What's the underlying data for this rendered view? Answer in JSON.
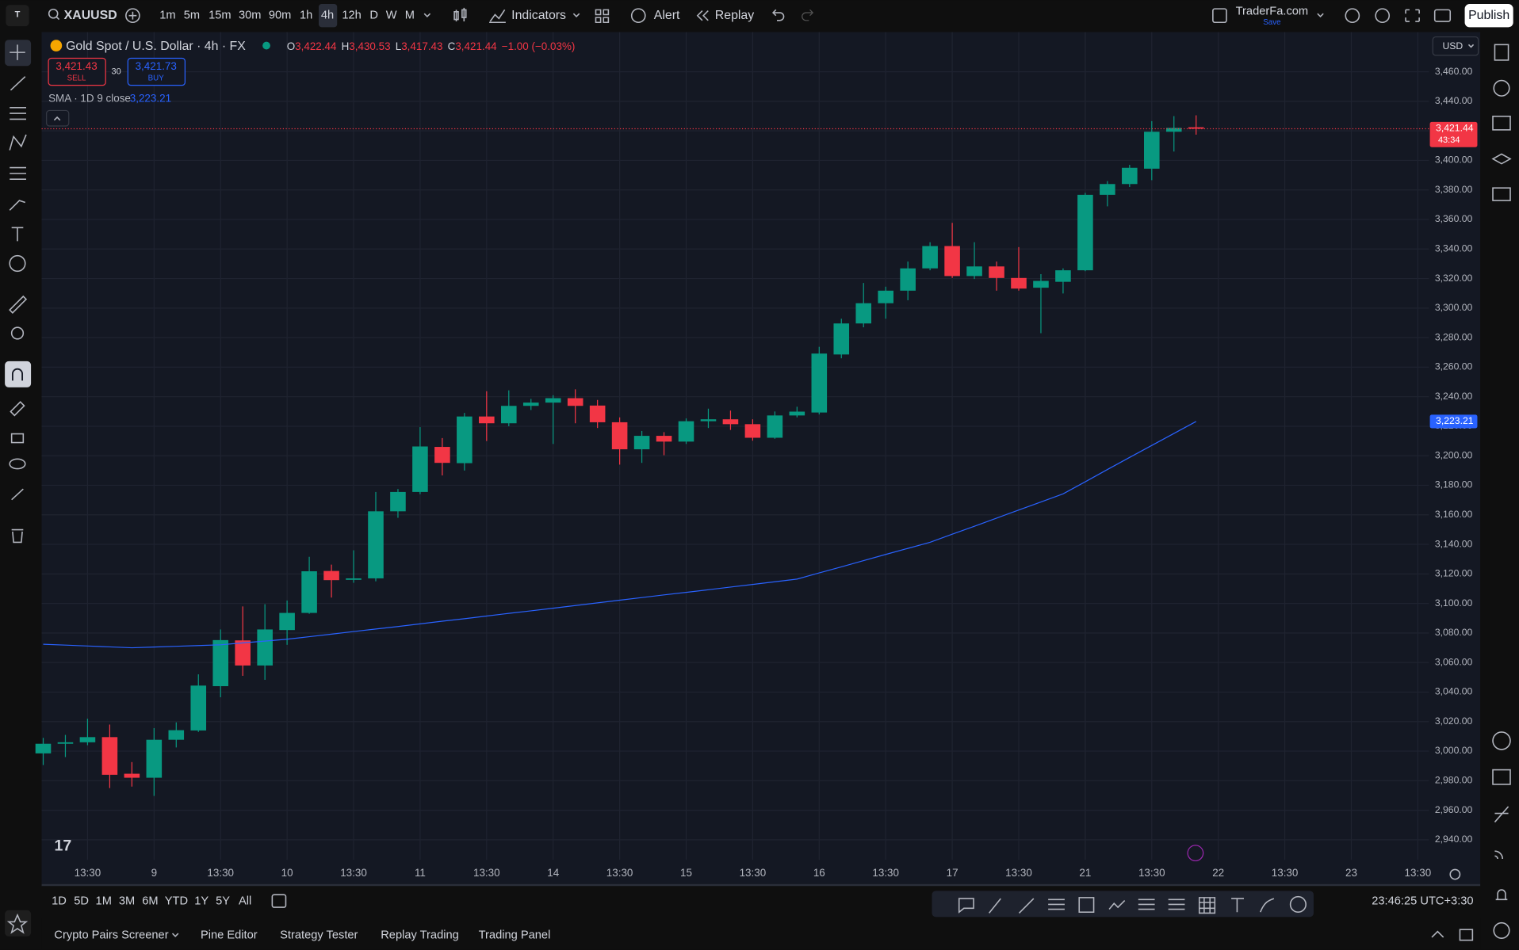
{
  "toolbar": {
    "symbol": "XAUUSD",
    "intervals": [
      "1m",
      "5m",
      "15m",
      "30m",
      "90m",
      "1h",
      "4h",
      "12h",
      "D",
      "W",
      "M"
    ],
    "indicators": "Indicators",
    "alert": "Alert",
    "replay": "Replay",
    "account": "TraderFa.com",
    "save": "Save",
    "publish": "Publish"
  },
  "legend": {
    "title": "Gold Spot / U.S. Dollar · 4h · FX",
    "ohlc_labels": [
      "O",
      "H",
      "L",
      "C"
    ],
    "ohlc_values": [
      "3,422.44",
      "3,430.53",
      "3,417.43",
      "3,421.44"
    ],
    "change": "−1.00 (−0.03%)",
    "sell_price": "3,421.43",
    "sell": "SELL",
    "spread": "30",
    "buy_price": "3,421.73",
    "buy": "BUY",
    "sma_value": "3,223.21"
  },
  "currency": "USD",
  "ranges": [
    "1D",
    "5D",
    "1M",
    "3M",
    "6M",
    "YTD",
    "1Y",
    "5Y",
    "All"
  ],
  "clock": "23:46:25 UTC+3:30",
  "tabs": [
    "Crypto Pairs Screener",
    "Pine Editor",
    "Strategy Tester",
    "Replay Trading",
    "Trading Panel"
  ],
  "chart_data": {
    "type": "candlestick",
    "grid": true,
    "up_color": "#089981",
    "down_color": "#f23645",
    "open": [
      2998.5,
      3005,
      3006,
      3009.5,
      2984.7,
      2982,
      3007.7,
      3014,
      3044,
      3075,
      3058,
      3082,
      3093.6,
      3122,
      3116,
      3117,
      3162.4,
      3175.5,
      3206,
      3195,
      3226.6,
      3222,
      3233.8,
      3236,
      3239,
      3234,
      3222.7,
      3204.4,
      3213.5,
      3209.6,
      3223.4,
      3224.7,
      3221.4,
      3212.2,
      3227.3,
      3229.3,
      3268.6,
      3289.6,
      3303.3,
      3311.8,
      3326.9,
      3342,
      3321.7,
      3328.2,
      3320.4,
      3313.8,
      3317.8,
      3325.6,
      3376.7,
      3384,
      3394.4,
      3419.4,
      3422.44
    ],
    "high": [
      3009,
      3011,
      3022,
      3018,
      2992.6,
      3015.6,
      3019.5,
      3052,
      3082.4,
      3098,
      3099.5,
      3102,
      3131.6,
      3126.3,
      3136,
      3175.5,
      3177.5,
      3219.4,
      3212,
      3229,
      3243.7,
      3244.3,
      3238.5,
      3241,
      3245,
      3237.8,
      3226,
      3216.8,
      3216,
      3225.3,
      3231.9,
      3230.6,
      3224.7,
      3230,
      3233.2,
      3273.8,
      3292.8,
      3317,
      3314.5,
      3331.5,
      3344.6,
      3357.7,
      3344.6,
      3331.5,
      3341.3,
      3323,
      3326.9,
      3378,
      3386,
      3397,
      3426.6,
      3430,
      3430.53
    ],
    "low": [
      2990.6,
      2996,
      3004,
      2975,
      2976,
      2969.7,
      3002.5,
      3013,
      3036.5,
      3051,
      3048.3,
      3072,
      3093,
      3104,
      3114,
      3115,
      3158,
      3174,
      3186.7,
      3190,
      3210,
      3220,
      3231,
      3208,
      3222,
      3218.8,
      3194,
      3195.2,
      3200.4,
      3208,
      3218.8,
      3217.5,
      3210.2,
      3211.5,
      3226,
      3228,
      3266,
      3287,
      3292.8,
      3305.3,
      3325.6,
      3320.4,
      3319.7,
      3311.8,
      3311.8,
      3283,
      3309.9,
      3325,
      3368.9,
      3382,
      3386.6,
      3406,
      3417.43
    ],
    "close": [
      3005,
      3006,
      3009.5,
      2984,
      2982,
      3007.7,
      3014.2,
      3044.4,
      3075.2,
      3058,
      3082.4,
      3093.6,
      3121.8,
      3115.8,
      3117,
      3162.4,
      3175.5,
      3206.3,
      3195.2,
      3226.6,
      3222,
      3233.8,
      3236,
      3239,
      3233.8,
      3222.7,
      3204.4,
      3213.5,
      3209.6,
      3223.4,
      3224.7,
      3221.4,
      3212.2,
      3227.3,
      3229.9,
      3269.2,
      3289.6,
      3303.3,
      3311.8,
      3326.9,
      3342,
      3321.7,
      3328.2,
      3320.4,
      3313.2,
      3318.4,
      3325.6,
      3376.7,
      3384,
      3395,
      3419.4,
      3422,
      3421.44
    ],
    "series": [
      {
        "name": "SMA · 1D 9 close",
        "color": "#2962ff",
        "values": [
          3072.4,
          3071.8,
          3071.2,
          3070.6,
          3070.0,
          3070.5,
          3071.0,
          3071.5,
          3072.0,
          3073.3,
          3074.5,
          3075.8,
          3077.5,
          3079.2,
          3081.0,
          3082.7,
          3084.4,
          3086.2,
          3088.0,
          3089.7,
          3091.5,
          3093.3,
          3095.0,
          3096.8,
          3098.6,
          3100.4,
          3102.2,
          3104.0,
          3105.8,
          3107.5,
          3109.3,
          3111.1,
          3112.9,
          3114.7,
          3116.5,
          3120.7,
          3124.8,
          3129.0,
          3133.2,
          3137.3,
          3141.4,
          3146.9,
          3152.3,
          3157.8,
          3163.3,
          3168.7,
          3174.2,
          3182.4,
          3190.7,
          3198.9,
          3207.0,
          3215.1,
          3223.21
        ]
      }
    ],
    "price_tags": [
      {
        "value": 3421.44,
        "label": "3,421.44",
        "countdown": "43:34",
        "color": "#f23645",
        "line": "dotted"
      },
      {
        "value": 3223.21,
        "label": "3,223.21",
        "color": "#2962ff"
      }
    ],
    "xlim": [
      -0.07,
      62.5
    ],
    "xticks": [
      {
        "value": 2,
        "label": "13:30"
      },
      {
        "value": 5,
        "label": "9"
      },
      {
        "value": 8,
        "label": "13:30"
      },
      {
        "value": 11,
        "label": "10"
      },
      {
        "value": 14,
        "label": "13:30"
      },
      {
        "value": 17,
        "label": "11"
      },
      {
        "value": 20,
        "label": "13:30"
      },
      {
        "value": 23,
        "label": "14"
      },
      {
        "value": 26,
        "label": "13:30"
      },
      {
        "value": 29,
        "label": "15"
      },
      {
        "value": 32,
        "label": "13:30"
      },
      {
        "value": 35,
        "label": "16"
      },
      {
        "value": 38,
        "label": "13:30"
      },
      {
        "value": 41,
        "label": "17"
      },
      {
        "value": 44,
        "label": "13:30"
      },
      {
        "value": 47,
        "label": "21"
      },
      {
        "value": 50,
        "label": "13:30"
      },
      {
        "value": 53,
        "label": "22"
      },
      {
        "value": 56,
        "label": "13:30"
      },
      {
        "value": 59,
        "label": "23"
      },
      {
        "value": 62,
        "label": "13:30"
      }
    ],
    "ylim": [
      2926.4,
      3486.9
    ],
    "yticks": [
      {
        "value": 2940,
        "label": "2,940.00"
      },
      {
        "value": 2960,
        "label": "2,960.00"
      },
      {
        "value": 2980,
        "label": "2,980.00"
      },
      {
        "value": 3000,
        "label": "3,000.00"
      },
      {
        "value": 3020,
        "label": "3,020.00"
      },
      {
        "value": 3040,
        "label": "3,040.00"
      },
      {
        "value": 3060,
        "label": "3,060.00"
      },
      {
        "value": 3080,
        "label": "3,080.00"
      },
      {
        "value": 3100,
        "label": "3,100.00"
      },
      {
        "value": 3120,
        "label": "3,120.00"
      },
      {
        "value": 3140,
        "label": "3,140.00"
      },
      {
        "value": 3160,
        "label": "3,160.00"
      },
      {
        "value": 3180,
        "label": "3,180.00"
      },
      {
        "value": 3200,
        "label": "3,200.00"
      },
      {
        "value": 3220,
        "label": "3,220.00"
      },
      {
        "value": 3240,
        "label": "3,240.00"
      },
      {
        "value": 3260,
        "label": "3,260.00"
      },
      {
        "value": 3280,
        "label": "3,280.00"
      },
      {
        "value": 3300,
        "label": "3,300.00"
      },
      {
        "value": 3320,
        "label": "3,320.00"
      },
      {
        "value": 3340,
        "label": "3,340.00"
      },
      {
        "value": 3360,
        "label": "3,360.00"
      },
      {
        "value": 3380,
        "label": "3,380.00"
      },
      {
        "value": 3400,
        "label": "3,400.00"
      },
      {
        "value": 3420,
        "label": "3,420.00"
      },
      {
        "value": 3440,
        "label": "3,440.00"
      },
      {
        "value": 3460,
        "label": "3,460.00"
      }
    ]
  }
}
